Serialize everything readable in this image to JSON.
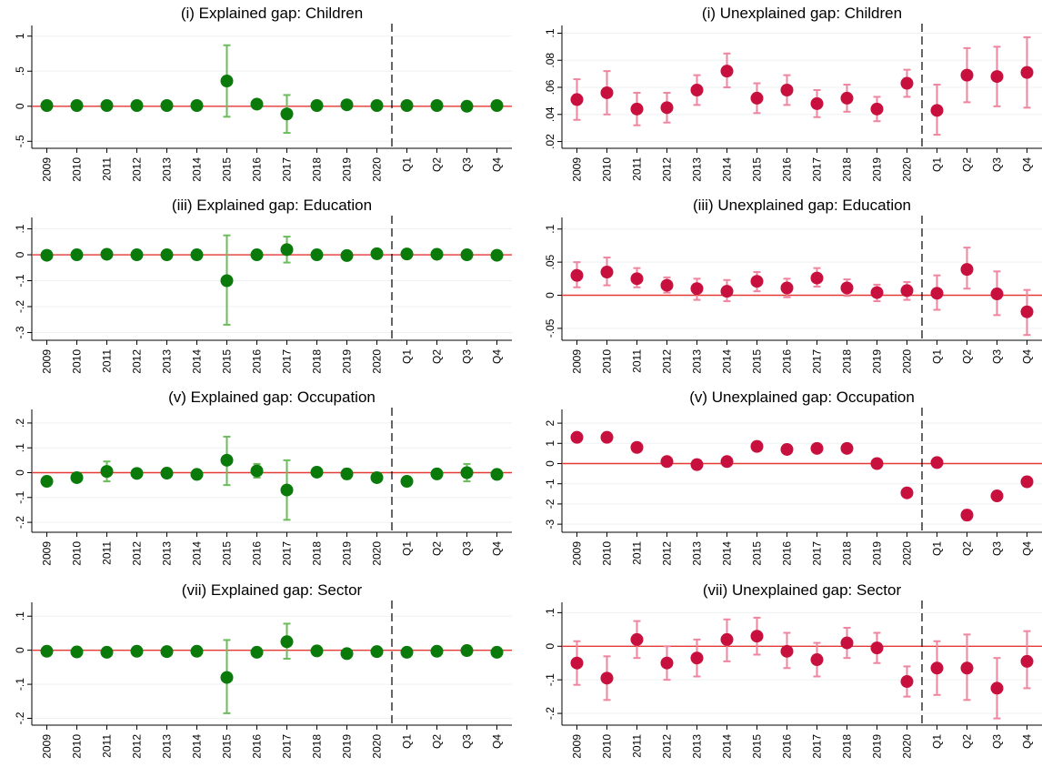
{
  "colors": {
    "explained_marker": "#0a7a0a",
    "explained_ci": "#6dbb5e",
    "unexplained_marker": "#c8103e",
    "unexplained_ci": "#ee86a0",
    "zero_line": "#e53935"
  },
  "chart_data": [
    {
      "type": "scatter",
      "title": "(i) Explained gap: Children",
      "categories": [
        "2009",
        "2010",
        "2011",
        "2012",
        "2013",
        "2014",
        "2015",
        "2016",
        "2017",
        "2018",
        "2019",
        "2020",
        "Q1",
        "Q2",
        "Q3",
        "Q4"
      ],
      "ylim": [
        -0.6,
        1.1
      ],
      "yticks": [
        -0.5,
        0,
        0.5,
        1
      ],
      "ytick_labels": [
        "-.5",
        "0",
        ".5",
        "1"
      ],
      "values": [
        0.01,
        0.01,
        0.01,
        0.01,
        0.01,
        0.01,
        0.36,
        0.03,
        -0.11,
        0.01,
        0.02,
        0.01,
        0.01,
        0.01,
        0.0,
        0.01
      ],
      "ci_low": [
        0.01,
        0.01,
        0.01,
        0.01,
        0.01,
        0.01,
        -0.15,
        0.0,
        -0.38,
        0.01,
        0.01,
        0.01,
        0.01,
        0.01,
        0.0,
        0.01
      ],
      "ci_high": [
        0.01,
        0.01,
        0.01,
        0.01,
        0.01,
        0.01,
        0.87,
        0.06,
        0.16,
        0.01,
        0.03,
        0.01,
        0.01,
        0.01,
        0.0,
        0.01
      ],
      "reference_line": 0,
      "group": "explained"
    },
    {
      "type": "scatter",
      "title": "(i) Unexplained gap: Children",
      "categories": [
        "2009",
        "2010",
        "2011",
        "2012",
        "2013",
        "2014",
        "2015",
        "2016",
        "2017",
        "2018",
        "2019",
        "2020",
        "Q1",
        "Q2",
        "Q3",
        "Q4"
      ],
      "ylim": [
        0.015,
        0.103
      ],
      "yticks": [
        0.02,
        0.04,
        0.06,
        0.08,
        0.1
      ],
      "ytick_labels": [
        ".02",
        ".04",
        ".06",
        ".08",
        ".1"
      ],
      "values": [
        0.051,
        0.056,
        0.044,
        0.045,
        0.058,
        0.072,
        0.052,
        0.058,
        0.048,
        0.052,
        0.044,
        0.063,
        0.043,
        0.069,
        0.068,
        0.071
      ],
      "ci_low": [
        0.036,
        0.04,
        0.032,
        0.034,
        0.047,
        0.06,
        0.041,
        0.047,
        0.038,
        0.042,
        0.035,
        0.053,
        0.025,
        0.049,
        0.046,
        0.045
      ],
      "ci_high": [
        0.066,
        0.072,
        0.056,
        0.056,
        0.069,
        0.085,
        0.063,
        0.069,
        0.058,
        0.062,
        0.053,
        0.073,
        0.062,
        0.089,
        0.09,
        0.097
      ],
      "group": "unexplained"
    },
    {
      "type": "scatter",
      "title": "(iii) Explained gap: Education",
      "categories": [
        "2009",
        "2010",
        "2011",
        "2012",
        "2013",
        "2014",
        "2015",
        "2016",
        "2017",
        "2018",
        "2019",
        "2020",
        "Q1",
        "Q2",
        "Q3",
        "Q4"
      ],
      "ylim": [
        -0.33,
        0.13
      ],
      "yticks": [
        -0.3,
        -0.2,
        -0.1,
        0,
        0.1
      ],
      "ytick_labels": [
        "-.3",
        "-.2",
        "-.1",
        "0",
        ".1"
      ],
      "values": [
        -0.002,
        0.0,
        0.002,
        0.0,
        0.0,
        0.0,
        -0.1,
        0.0,
        0.02,
        0.0,
        -0.003,
        0.004,
        0.003,
        0.002,
        0.0,
        -0.002
      ],
      "ci_low": [
        -0.002,
        0.0,
        0.002,
        0.0,
        0.0,
        0.0,
        -0.27,
        0.0,
        -0.03,
        0.0,
        -0.003,
        0.004,
        0.003,
        0.002,
        0.0,
        -0.002
      ],
      "ci_high": [
        -0.002,
        0.0,
        0.002,
        0.0,
        0.0,
        0.0,
        0.075,
        0.0,
        0.07,
        0.0,
        -0.003,
        0.004,
        0.003,
        0.002,
        0.0,
        -0.002
      ],
      "reference_line": 0,
      "group": "explained"
    },
    {
      "type": "scatter",
      "title": "(iii) Unexplained gap: Education",
      "categories": [
        "2009",
        "2010",
        "2011",
        "2012",
        "2013",
        "2014",
        "2015",
        "2016",
        "2017",
        "2018",
        "2019",
        "2020",
        "Q1",
        "Q2",
        "Q3",
        "Q4"
      ],
      "ylim": [
        -0.068,
        0.112
      ],
      "yticks": [
        -0.05,
        0,
        0.05,
        0.1
      ],
      "ytick_labels": [
        "-.05",
        "0",
        ".05",
        ".1"
      ],
      "values": [
        0.03,
        0.035,
        0.025,
        0.015,
        0.01,
        0.006,
        0.021,
        0.011,
        0.026,
        0.011,
        0.004,
        0.007,
        0.003,
        0.039,
        0.002,
        -0.025
      ],
      "ci_low": [
        0.012,
        0.015,
        0.012,
        0.004,
        -0.007,
        -0.009,
        0.006,
        -0.003,
        0.013,
        -0.001,
        -0.009,
        -0.007,
        -0.022,
        0.01,
        -0.03,
        -0.06
      ],
      "ci_high": [
        0.05,
        0.057,
        0.041,
        0.027,
        0.025,
        0.023,
        0.035,
        0.025,
        0.041,
        0.024,
        0.016,
        0.02,
        0.03,
        0.072,
        0.036,
        0.008
      ],
      "reference_line": 0,
      "group": "unexplained"
    },
    {
      "type": "scatter",
      "title": "(v) Explained gap: Occupation",
      "categories": [
        "2009",
        "2010",
        "2011",
        "2012",
        "2013",
        "2014",
        "2015",
        "2016",
        "2017",
        "2018",
        "2019",
        "2020",
        "Q1",
        "Q2",
        "Q3",
        "Q4"
      ],
      "ylim": [
        -0.24,
        0.24
      ],
      "yticks": [
        -0.2,
        -0.1,
        0,
        0.1,
        0.2
      ],
      "ytick_labels": [
        "-.2",
        "-.1",
        "0",
        ".1",
        ".2"
      ],
      "values": [
        -0.035,
        -0.02,
        0.005,
        -0.003,
        -0.002,
        -0.007,
        0.05,
        0.007,
        -0.07,
        0.002,
        -0.005,
        -0.02,
        -0.035,
        -0.005,
        0.0,
        -0.007
      ],
      "ci_low": [
        -0.045,
        -0.035,
        -0.035,
        -0.003,
        -0.002,
        -0.015,
        -0.05,
        -0.02,
        -0.19,
        0.002,
        -0.025,
        -0.02,
        -0.035,
        -0.02,
        -0.035,
        -0.02
      ],
      "ci_high": [
        -0.025,
        -0.005,
        0.045,
        -0.003,
        -0.002,
        0.0,
        0.145,
        0.035,
        0.05,
        0.002,
        0.015,
        -0.02,
        -0.035,
        0.01,
        0.035,
        0.005
      ],
      "reference_line": 0,
      "group": "explained"
    },
    {
      "type": "scatter",
      "title": "(v) Unexplained gap: Occupation",
      "categories": [
        "2009",
        "2010",
        "2011",
        "2012",
        "2013",
        "2014",
        "2015",
        "2016",
        "2017",
        "2018",
        "2019",
        "2020",
        "Q1",
        "Q2",
        "Q3",
        "Q4"
      ],
      "ylim": [
        -3.4,
        2.5
      ],
      "yticks": [
        -3,
        -2,
        -1,
        0,
        1,
        2
      ],
      "ytick_labels": [
        "-3",
        "-2",
        "-1",
        "0",
        "1",
        "2"
      ],
      "values": [
        1.3,
        1.3,
        0.8,
        0.1,
        -0.05,
        0.1,
        0.85,
        0.7,
        0.75,
        0.75,
        0.0,
        -1.45,
        0.05,
        -2.55,
        -1.6,
        -0.9
      ],
      "ci_low": [
        1.3,
        1.3,
        0.8,
        0.1,
        -0.05,
        0.1,
        0.85,
        0.7,
        0.75,
        0.75,
        0.0,
        -1.45,
        0.05,
        -2.8,
        -1.6,
        -0.9
      ],
      "ci_high": [
        1.3,
        1.3,
        0.8,
        0.1,
        -0.05,
        0.1,
        0.85,
        0.7,
        0.75,
        0.75,
        0.0,
        -1.45,
        0.05,
        -2.3,
        -1.6,
        -0.9
      ],
      "reference_line": 0,
      "group": "unexplained"
    },
    {
      "type": "scatter",
      "title": "(vii) Explained gap: Sector",
      "categories": [
        "2009",
        "2010",
        "2011",
        "2012",
        "2013",
        "2014",
        "2015",
        "2016",
        "2017",
        "2018",
        "2019",
        "2020",
        "Q1",
        "Q2",
        "Q3",
        "Q4"
      ],
      "ylim": [
        -0.22,
        0.13
      ],
      "yticks": [
        -0.2,
        -0.1,
        0,
        0.1
      ],
      "ytick_labels": [
        "-.2",
        "-.1",
        "0",
        ".1"
      ],
      "values": [
        -0.003,
        -0.005,
        -0.006,
        -0.003,
        -0.004,
        -0.003,
        -0.08,
        -0.006,
        0.025,
        -0.002,
        -0.01,
        -0.004,
        -0.006,
        -0.003,
        -0.001,
        -0.006
      ],
      "ci_low": [
        -0.003,
        -0.005,
        -0.006,
        -0.003,
        -0.004,
        -0.003,
        -0.185,
        -0.006,
        -0.025,
        -0.002,
        -0.01,
        -0.004,
        -0.006,
        -0.003,
        -0.001,
        -0.006
      ],
      "ci_high": [
        -0.003,
        -0.005,
        -0.006,
        -0.003,
        -0.004,
        -0.003,
        0.03,
        -0.006,
        0.078,
        -0.002,
        -0.01,
        -0.004,
        -0.006,
        -0.003,
        -0.001,
        -0.006
      ],
      "reference_line": 0,
      "group": "explained"
    },
    {
      "type": "scatter",
      "title": "(vii) Unexplained gap: Sector",
      "categories": [
        "2009",
        "2010",
        "2011",
        "2012",
        "2013",
        "2014",
        "2015",
        "2016",
        "2017",
        "2018",
        "2019",
        "2020",
        "Q1",
        "Q2",
        "Q3",
        "Q4"
      ],
      "ylim": [
        -0.235,
        0.12
      ],
      "yticks": [
        -0.2,
        -0.1,
        0,
        0.1
      ],
      "ytick_labels": [
        "-.2",
        "-.1",
        "0",
        ".1"
      ],
      "values": [
        -0.05,
        -0.095,
        0.02,
        -0.05,
        -0.035,
        0.02,
        0.03,
        -0.015,
        -0.04,
        0.01,
        -0.005,
        -0.105,
        -0.065,
        -0.065,
        -0.125,
        -0.045
      ],
      "ci_low": [
        -0.115,
        -0.16,
        -0.035,
        -0.1,
        -0.09,
        -0.045,
        -0.025,
        -0.065,
        -0.09,
        -0.035,
        -0.05,
        -0.15,
        -0.145,
        -0.16,
        -0.215,
        -0.125
      ],
      "ci_high": [
        0.015,
        -0.03,
        0.075,
        0.0,
        0.02,
        0.08,
        0.085,
        0.04,
        0.01,
        0.055,
        0.04,
        -0.06,
        0.015,
        0.035,
        -0.035,
        0.045
      ],
      "reference_line": 0,
      "group": "unexplained"
    }
  ]
}
